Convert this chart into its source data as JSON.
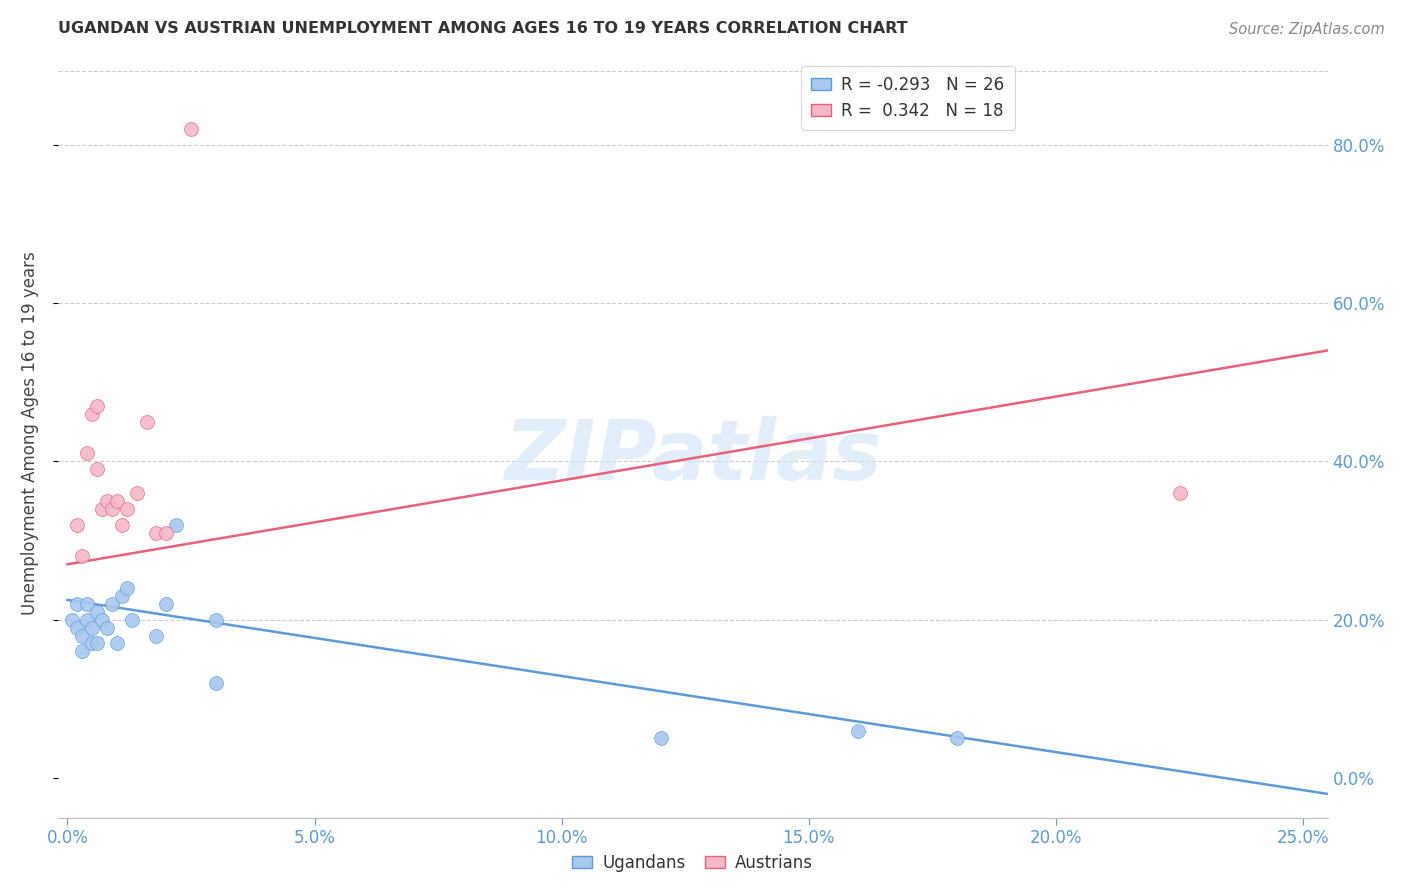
{
  "title": "UGANDAN VS AUSTRIAN UNEMPLOYMENT AMONG AGES 16 TO 19 YEARS CORRELATION CHART",
  "source": "Source: ZipAtlas.com",
  "ylabel": "Unemployment Among Ages 16 to 19 years",
  "xlim": [
    -0.002,
    0.255
  ],
  "ylim": [
    -0.05,
    0.92
  ],
  "xticks": [
    0.0,
    0.05,
    0.1,
    0.15,
    0.2,
    0.25
  ],
  "yticks_right": [
    0.0,
    0.2,
    0.4,
    0.6,
    0.8
  ],
  "ugandan_color": "#a8c8f0",
  "austrian_color": "#f5b8c8",
  "ugandan_line_color": "#5b9bd5",
  "austrian_line_color": "#e8607a",
  "legend_ugandan_label": "R = -0.293   N = 26",
  "legend_austrian_label": "R =  0.342   N = 18",
  "legend_group_label_ugandan": "Ugandans",
  "legend_group_label_austrian": "Austrians",
  "watermark": "ZIPatlas",
  "background_color": "#ffffff",
  "ugandan_x": [
    0.001,
    0.002,
    0.002,
    0.003,
    0.003,
    0.004,
    0.004,
    0.005,
    0.005,
    0.006,
    0.006,
    0.007,
    0.008,
    0.009,
    0.01,
    0.011,
    0.012,
    0.013,
    0.018,
    0.02,
    0.022,
    0.03,
    0.03,
    0.12,
    0.16,
    0.18
  ],
  "ugandan_y": [
    0.2,
    0.19,
    0.22,
    0.18,
    0.16,
    0.22,
    0.2,
    0.19,
    0.17,
    0.17,
    0.21,
    0.2,
    0.19,
    0.22,
    0.17,
    0.23,
    0.24,
    0.2,
    0.18,
    0.22,
    0.32,
    0.2,
    0.12,
    0.05,
    0.06,
    0.05
  ],
  "austrian_x": [
    0.002,
    0.003,
    0.004,
    0.005,
    0.006,
    0.006,
    0.007,
    0.008,
    0.009,
    0.01,
    0.011,
    0.012,
    0.014,
    0.016,
    0.018,
    0.02,
    0.025,
    0.225
  ],
  "austrian_y": [
    0.32,
    0.28,
    0.41,
    0.46,
    0.47,
    0.39,
    0.34,
    0.35,
    0.34,
    0.35,
    0.32,
    0.34,
    0.36,
    0.45,
    0.31,
    0.31,
    0.82,
    0.36
  ],
  "ugandan_trend_x": [
    0.0,
    0.255
  ],
  "ugandan_trend_y": [
    0.225,
    -0.02
  ],
  "austrian_trend_x": [
    0.0,
    0.255
  ],
  "austrian_trend_y": [
    0.27,
    0.54
  ],
  "marker_size": 100,
  "grid_color": "#cccccc",
  "grid_linestyle": "--",
  "grid_linewidth": 0.8
}
